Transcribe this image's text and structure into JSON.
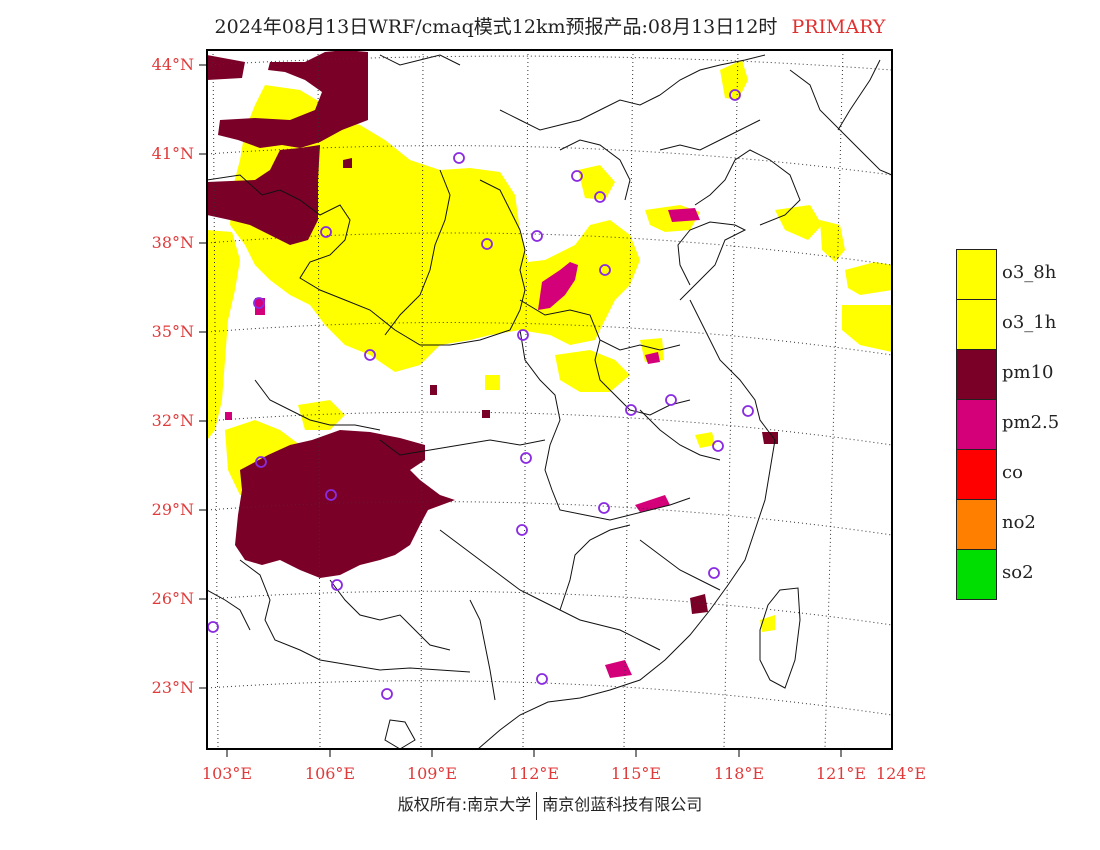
{
  "title": {
    "text": "2024年08月13日WRF/cmaq模式12km预报产品:08月13日12时",
    "tag": "PRIMARY"
  },
  "map": {
    "lat_labels": [
      "44°N",
      "41°N",
      "38°N",
      "35°N",
      "32°N",
      "29°N",
      "26°N",
      "23°N"
    ],
    "lon_labels": [
      "103°E",
      "106°E",
      "109°E",
      "112°E",
      "115°E",
      "118°E",
      "121°E",
      "124°E"
    ]
  },
  "legend": [
    {
      "label": "o3_8h",
      "color": "#ffff00"
    },
    {
      "label": "o3_1h",
      "color": "#ffff00"
    },
    {
      "label": "pm10",
      "color": "#7a0028"
    },
    {
      "label": "pm2.5",
      "color": "#d4007a"
    },
    {
      "label": "co",
      "color": "#ff0000"
    },
    {
      "label": "no2",
      "color": "#ff7f00"
    },
    {
      "label": "so2",
      "color": "#00dd00"
    }
  ],
  "footer": {
    "left": "版权所有:南京大学",
    "right": "南京创蓝科技有限公司"
  }
}
